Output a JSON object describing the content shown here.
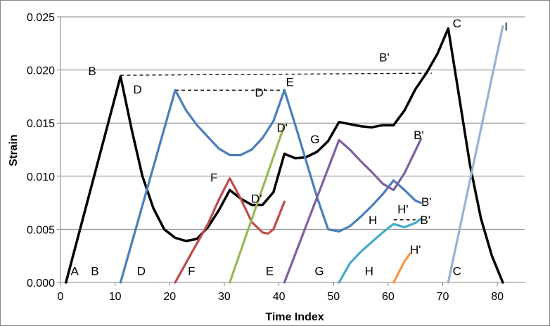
{
  "chart_data": {
    "type": "line",
    "title": "",
    "xlabel": "Time Index",
    "ylabel": "Strain",
    "xlim": [
      0,
      85
    ],
    "ylim": [
      0,
      0.025
    ],
    "x_ticks": [
      "0",
      "10",
      "20",
      "30",
      "40",
      "50",
      "60",
      "70",
      "80"
    ],
    "y_ticks": [
      "0.000",
      "0.005",
      "0.010",
      "0.015",
      "0.020",
      "0.025"
    ],
    "grid": "horizontal",
    "legend": "none",
    "series": [
      {
        "color": "#000000",
        "points": [
          [
            1,
            0
          ],
          [
            11,
            0.0194
          ],
          [
            13,
            0.0145
          ],
          [
            15,
            0.01
          ],
          [
            17,
            0.007
          ],
          [
            19,
            0.005
          ],
          [
            21,
            0.0042
          ],
          [
            23,
            0.0039
          ],
          [
            25,
            0.0041
          ],
          [
            27,
            0.0052
          ],
          [
            29,
            0.0068
          ],
          [
            31,
            0.0087
          ],
          [
            33,
            0.0079
          ],
          [
            35,
            0.0073
          ],
          [
            37,
            0.0073
          ],
          [
            39,
            0.0085
          ],
          [
            41,
            0.0121
          ],
          [
            43,
            0.0117
          ],
          [
            45,
            0.0118
          ],
          [
            47,
            0.0123
          ],
          [
            49,
            0.0133
          ],
          [
            51,
            0.0151
          ],
          [
            53,
            0.0149
          ],
          [
            55,
            0.0147
          ],
          [
            57,
            0.0146
          ],
          [
            59,
            0.0148
          ],
          [
            61,
            0.0148
          ],
          [
            63,
            0.0162
          ],
          [
            65,
            0.0182
          ],
          [
            67,
            0.0197
          ],
          [
            69,
            0.0215
          ],
          [
            71,
            0.0239
          ],
          [
            73,
            0.0175
          ],
          [
            75,
            0.011
          ],
          [
            77,
            0.006
          ],
          [
            79,
            0.0025
          ],
          [
            81,
            0
          ]
        ]
      },
      {
        "color": "#4A7EBB",
        "points": [
          [
            11,
            0
          ],
          [
            21,
            0.0181
          ],
          [
            23,
            0.0162
          ],
          [
            25,
            0.0148
          ],
          [
            27,
            0.0137
          ],
          [
            29,
            0.0126
          ],
          [
            31,
            0.012
          ],
          [
            33,
            0.012
          ],
          [
            35,
            0.0125
          ],
          [
            37,
            0.0136
          ],
          [
            39,
            0.0152
          ],
          [
            41,
            0.0181
          ],
          [
            43,
            0.0148
          ],
          [
            45,
            0.0114
          ],
          [
            47,
            0.008
          ],
          [
            49,
            0.005
          ],
          [
            51,
            0.0048
          ],
          [
            53,
            0.0053
          ],
          [
            55,
            0.0062
          ],
          [
            57,
            0.0072
          ],
          [
            59,
            0.0083
          ],
          [
            61,
            0.0096
          ],
          [
            63,
            0.0087
          ],
          [
            65,
            0.0077
          ],
          [
            66,
            0.0075
          ]
        ]
      },
      {
        "color": "#BE4B48",
        "points": [
          [
            21,
            0
          ],
          [
            25,
            0.0037
          ],
          [
            27,
            0.0055
          ],
          [
            29,
            0.0078
          ],
          [
            31,
            0.0098
          ],
          [
            33,
            0.0079
          ],
          [
            35,
            0.0057
          ],
          [
            37,
            0.0047
          ],
          [
            38,
            0.0046
          ],
          [
            39,
            0.005
          ],
          [
            41,
            0.0076
          ]
        ]
      },
      {
        "color": "#98B954",
        "points": [
          [
            31,
            0
          ],
          [
            41,
            0.0148
          ]
        ]
      },
      {
        "color": "#7D60A0",
        "points": [
          [
            41,
            0
          ],
          [
            51,
            0.0134
          ],
          [
            53,
            0.0125
          ],
          [
            55,
            0.0114
          ],
          [
            57,
            0.0104
          ],
          [
            59,
            0.0093
          ],
          [
            61,
            0.0087
          ],
          [
            63,
            0.0103
          ],
          [
            66,
            0.0135
          ]
        ]
      },
      {
        "color": "#46AAC5",
        "points": [
          [
            51,
            0
          ],
          [
            53,
            0.0018
          ],
          [
            55,
            0.0029
          ],
          [
            57,
            0.0038
          ],
          [
            59,
            0.0047
          ],
          [
            61,
            0.0055
          ],
          [
            63,
            0.0052
          ],
          [
            65,
            0.0056
          ],
          [
            66,
            0.006
          ]
        ]
      },
      {
        "color": "#F79646",
        "points": [
          [
            61,
            0
          ],
          [
            62,
            0.001
          ],
          [
            63,
            0.002
          ],
          [
            64,
            0.0027
          ]
        ]
      },
      {
        "color": "#95B3D7",
        "points": [
          [
            71,
            0
          ],
          [
            81,
            0.0241
          ]
        ]
      }
    ],
    "reference_lines": [
      {
        "points": [
          [
            11,
            0.0195
          ],
          [
            68,
            0.0197
          ]
        ]
      },
      {
        "points": [
          [
            21,
            0.0181
          ],
          [
            41,
            0.0181
          ]
        ]
      },
      {
        "points": [
          [
            61,
            0.0059
          ],
          [
            65,
            0.0059
          ]
        ]
      }
    ],
    "annotations": [
      {
        "text": "A",
        "x": 2.6,
        "y": 0.0007
      },
      {
        "text": "B",
        "x": 5.8,
        "y": 0.0195
      },
      {
        "text": "B",
        "x": 6.3,
        "y": 0.0007
      },
      {
        "text": "D",
        "x": 14.1,
        "y": 0.0178
      },
      {
        "text": "D",
        "x": 14.8,
        "y": 0.0007
      },
      {
        "text": "F",
        "x": 28.1,
        "y": 0.0095
      },
      {
        "text": "F",
        "x": 24.0,
        "y": 0.0007
      },
      {
        "text": "D'",
        "x": 36.6,
        "y": 0.0175
      },
      {
        "text": "E",
        "x": 42.0,
        "y": 0.0185
      },
      {
        "text": "D'",
        "x": 40.6,
        "y": 0.0142
      },
      {
        "text": "D'",
        "x": 35.9,
        "y": 0.0075
      },
      {
        "text": "E",
        "x": 38.3,
        "y": 0.0007
      },
      {
        "text": "G",
        "x": 46.6,
        "y": 0.0131
      },
      {
        "text": "G",
        "x": 47.4,
        "y": 0.0007
      },
      {
        "text": "H",
        "x": 57.2,
        "y": 0.0055
      },
      {
        "text": "H'",
        "x": 62.7,
        "y": 0.0065
      },
      {
        "text": "H",
        "x": 56.5,
        "y": 0.0007
      },
      {
        "text": "H'",
        "x": 65.0,
        "y": 0.0027
      },
      {
        "text": "B'",
        "x": 59.3,
        "y": 0.0208
      },
      {
        "text": "B'",
        "x": 65.6,
        "y": 0.0135
      },
      {
        "text": "B'",
        "x": 67.0,
        "y": 0.0072
      },
      {
        "text": "B'",
        "x": 66.8,
        "y": 0.0055
      },
      {
        "text": "C",
        "x": 72.6,
        "y": 0.024
      },
      {
        "text": "C",
        "x": 72.6,
        "y": 0.0007
      },
      {
        "text": "I",
        "x": 81.6,
        "y": 0.0237
      }
    ]
  }
}
